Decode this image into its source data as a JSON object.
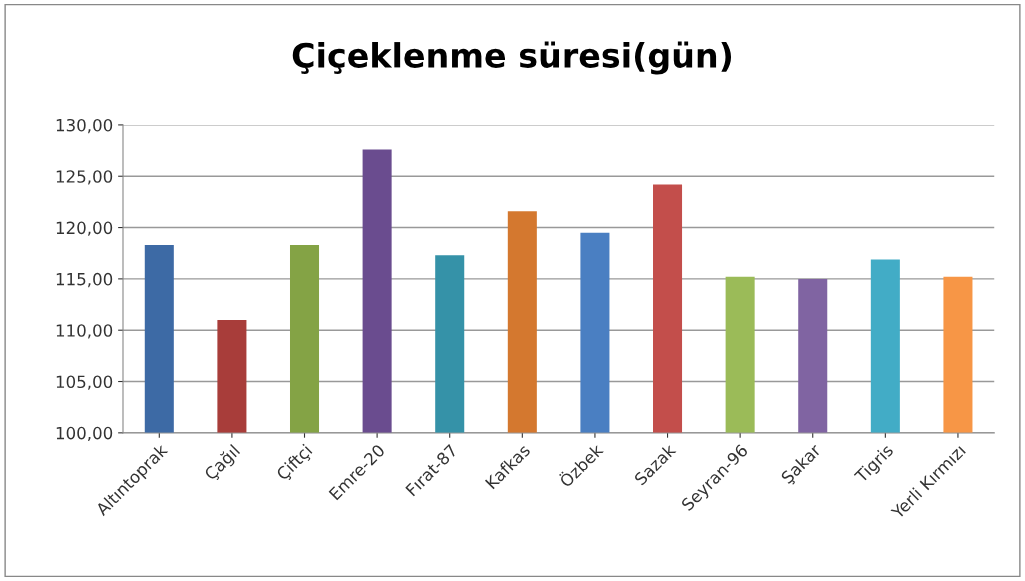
{
  "chart_data": {
    "type": "bar",
    "title": "Çiçeklenme süresi(gün)",
    "categories": [
      "Altıntoprak",
      "Çağıl",
      "Çiftçi",
      "Emre-20",
      "Fırat-87",
      "Kafkas",
      "Özbek",
      "Sazak",
      "Seyran-96",
      "Şakar",
      "Tigris",
      "Yerli Kırmızı"
    ],
    "values": [
      118.3,
      111.0,
      118.3,
      127.6,
      117.3,
      121.6,
      119.5,
      124.2,
      115.2,
      115.0,
      116.9,
      115.2
    ],
    "colors": [
      "#3d6aa5",
      "#a83d3a",
      "#84a345",
      "#6a4c8f",
      "#3592a8",
      "#d4782f",
      "#4a7fc2",
      "#c34e4b",
      "#9bbb58",
      "#8064a2",
      "#42acc6",
      "#f79646"
    ],
    "ylim": [
      100,
      130
    ],
    "yticks": [
      {
        "value": 100,
        "label": "100,00"
      },
      {
        "value": 105,
        "label": "105,00"
      },
      {
        "value": 110,
        "label": "110,00"
      },
      {
        "value": 115,
        "label": "115,00"
      },
      {
        "value": 120,
        "label": "120,00"
      },
      {
        "value": 125,
        "label": "125,00"
      },
      {
        "value": 130,
        "label": "130,00"
      }
    ],
    "grid": "y"
  }
}
